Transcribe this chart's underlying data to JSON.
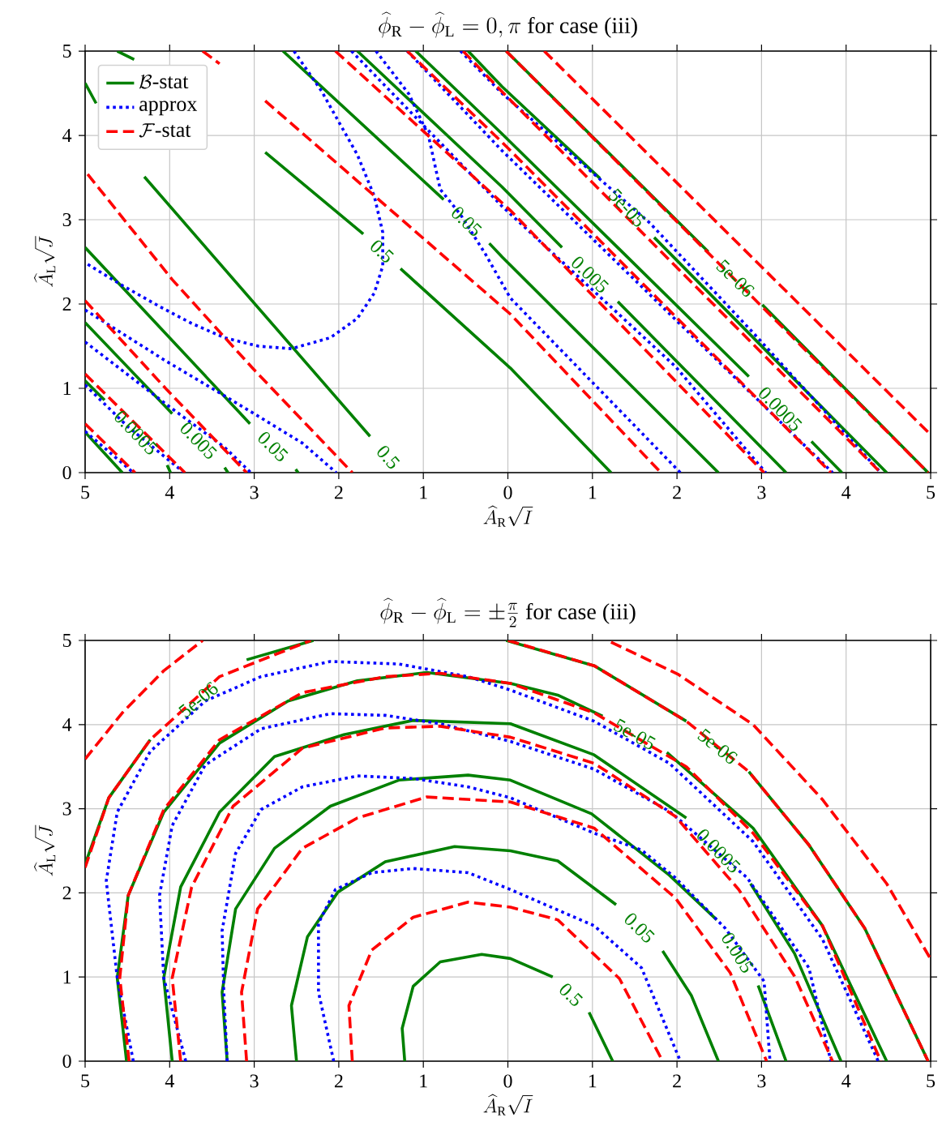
{
  "chart_data": [
    {
      "type": "line",
      "title": "\\widehat{\\phi}_{\\mathrm{R}} - \\widehat{\\phi}_{\\mathrm{L}} = 0, \\pi\\mbox{ for case (iii)}",
      "xlabel": "\\widehat{A}_{\\mathrm{R}}\\sqrt{I}",
      "ylabel": "\\widehat{A}_{\\mathrm{L}}\\sqrt{J}",
      "xlim": [
        -5,
        5
      ],
      "ylim": [
        0,
        5
      ],
      "xticks": [
        {
          "value": -5,
          "label": "5"
        },
        {
          "value": -4,
          "label": "4"
        },
        {
          "value": -3,
          "label": "3"
        },
        {
          "value": -2,
          "label": "2"
        },
        {
          "value": -1,
          "label": "1"
        },
        {
          "value": 0,
          "label": "0"
        },
        {
          "value": 1,
          "label": "1"
        },
        {
          "value": 2,
          "label": "2"
        },
        {
          "value": 3,
          "label": "3"
        },
        {
          "value": 4,
          "label": "4"
        },
        {
          "value": 5,
          "label": "5"
        }
      ],
      "yticks": [
        0,
        1,
        2,
        3,
        4,
        5
      ],
      "grid": true,
      "legend": "top left",
      "series": [
        {
          "name": "\\mathcal{B}\\mbox{-stat}",
          "color": "#008000",
          "line_style": "solid",
          "x": [
            -4.62,
            -4.42,
            null,
            -2.87,
            -1.71,
            null,
            -1.27,
            0.03,
            1.22
          ],
          "values": [
            5.0,
            4.9,
            null,
            3.8,
            2.83,
            null,
            2.42,
            1.24,
            0
          ]
        },
        {
          "color": "#008000",
          "line_style": "solid",
          "x": [
            -2.66,
            -0.76,
            null,
            -0.22,
            -0.07,
            2.49
          ],
          "values": [
            5.0,
            3.24,
            null,
            2.72,
            2.56,
            0
          ]
        },
        {
          "color": "#008000",
          "line_style": "solid",
          "x": [
            -1.78,
            -0.07,
            0.64,
            null,
            1.3,
            3.29
          ],
          "values": [
            5.0,
            3.39,
            2.67,
            null,
            2.03,
            0
          ]
        },
        {
          "color": "#008000",
          "line_style": "solid",
          "x": [
            -1.09,
            -0.07,
            2.85,
            null,
            3.59,
            3.95
          ],
          "values": [
            5.0,
            4.02,
            1.14,
            null,
            0.37,
            0
          ]
        },
        {
          "color": "#008000",
          "line_style": "solid",
          "x": [
            -0.47,
            -0.07,
            1.09,
            null,
            1.73,
            4.48
          ],
          "values": [
            5.0,
            4.58,
            3.49,
            null,
            2.79,
            0
          ]
        },
        {
          "color": "#008000",
          "line_style": "solid",
          "x": [
            -0.02,
            2.37,
            null,
            3.01,
            4.97
          ],
          "values": [
            5.0,
            2.62,
            null,
            1.99,
            0
          ]
        },
        {
          "color": "#008000",
          "line_style": "solid",
          "x": [
            -5,
            -4.87,
            null,
            -4.3,
            -1.63
          ],
          "values": [
            4.62,
            4.38,
            null,
            3.51,
            0.43
          ]
        },
        {
          "color": "#008000",
          "line_style": "solid",
          "x": [
            -5,
            -3.05,
            null,
            -2.51,
            -2.48
          ],
          "values": [
            2.67,
            0.58,
            null,
            0.04,
            0
          ]
        },
        {
          "color": "#008000",
          "line_style": "solid",
          "x": [
            -5,
            -3.97,
            null,
            -3.35,
            -3.31
          ],
          "values": [
            1.78,
            0.7,
            null,
            0.06,
            0
          ]
        },
        {
          "color": "#008000",
          "line_style": "solid",
          "x": [
            -5,
            -4.77,
            null,
            -4.03,
            -3.99
          ],
          "values": [
            1.09,
            0.86,
            null,
            0.09,
            0
          ]
        },
        {
          "color": "#008000",
          "line_style": "solid",
          "x": [
            -5,
            -4.56
          ],
          "values": [
            0.48,
            0
          ]
        },
        {
          "name": "\\mbox{approx}",
          "color": "#0000ff",
          "line_style": "dotted",
          "x": [
            -2.53,
            -2.2,
            -2.0,
            -1.78,
            -1.58,
            -1.48,
            -1.48,
            -1.58,
            -1.78,
            -2.1,
            -2.56,
            -2.95,
            -3.35,
            -3.74,
            -4.1,
            -4.56,
            -5
          ],
          "values": [
            5.0,
            4.52,
            4.16,
            3.77,
            3.28,
            2.85,
            2.45,
            2.13,
            1.83,
            1.6,
            1.47,
            1.5,
            1.6,
            1.77,
            1.96,
            2.22,
            2.49
          ]
        },
        {
          "color": "#0000ff",
          "line_style": "dotted",
          "x": [
            -1.56,
            -1.17,
            -0.94,
            -0.8,
            -0.56,
            -0.27,
            0.03,
            2.04
          ],
          "values": [
            5.0,
            4.49,
            4.0,
            3.36,
            3.06,
            2.6,
            2.07,
            0
          ]
        },
        {
          "color": "#0000ff",
          "line_style": "dotted",
          "x": [
            -0.56,
            -0.07,
            1.68,
            2.9,
            4.41
          ],
          "values": [
            5.0,
            4.5,
            2.96,
            1.66,
            0
          ]
        },
        {
          "color": "#0000ff",
          "line_style": "dotted",
          "x": [
            -1.19,
            -0.07,
            3.84
          ],
          "values": [
            5.0,
            3.82,
            0
          ]
        },
        {
          "color": "#0000ff",
          "line_style": "dotted",
          "x": [
            -1.85,
            -0.07,
            1.98,
            3.05
          ],
          "values": [
            5.0,
            3.16,
            1.26,
            0
          ]
        },
        {
          "color": "#0000ff",
          "line_style": "dotted",
          "x": [
            -5,
            -4.07,
            -3.35,
            -2.92,
            -2.43,
            -2.03
          ],
          "values": [
            1.93,
            1.34,
            0.91,
            0.65,
            0.35,
            0
          ]
        },
        {
          "color": "#0000ff",
          "line_style": "dotted",
          "x": [
            -5,
            -4.0,
            -3.35,
            -3.04
          ],
          "values": [
            1.55,
            0.78,
            0.3,
            0
          ]
        },
        {
          "color": "#0000ff",
          "line_style": "dotted",
          "x": [
            -5,
            -4.5,
            -3.83
          ],
          "values": [
            1.04,
            0.55,
            0
          ]
        },
        {
          "color": "#0000ff",
          "line_style": "dotted",
          "x": [
            -5,
            -4.43
          ],
          "values": [
            0.49,
            0
          ]
        },
        {
          "name": "\\mathcal{F}\\mbox{-stat}",
          "color": "#ff0000",
          "line_style": "dashed",
          "x": [
            -3.61,
            -3.41,
            null,
            -2.87,
            0.03,
            1.81
          ],
          "values": [
            5.0,
            4.85,
            null,
            4.41,
            1.88,
            0
          ]
        },
        {
          "color": "#ff0000",
          "line_style": "dashed",
          "x": [
            -4.97,
            -3.97,
            -3.02,
            -1.84
          ],
          "values": [
            3.54,
            2.29,
            1.24,
            0
          ]
        },
        {
          "color": "#ff0000",
          "line_style": "dashed",
          "x": [
            -5,
            -4.03,
            -3.09
          ],
          "values": [
            2.04,
            0.98,
            0
          ]
        },
        {
          "color": "#ff0000",
          "line_style": "dashed",
          "x": [
            -5,
            -3.82
          ],
          "values": [
            1.17,
            0
          ]
        },
        {
          "color": "#ff0000",
          "line_style": "dashed",
          "x": [
            -5,
            -4.41
          ],
          "values": [
            0.58,
            0
          ]
        },
        {
          "color": "#ff0000",
          "line_style": "dashed",
          "x": [
            -2.04,
            0.03,
            3.03
          ],
          "values": [
            5.0,
            3.11,
            0
          ]
        },
        {
          "color": "#ff0000",
          "line_style": "dashed",
          "x": [
            -1.19,
            -0.07,
            3.82
          ],
          "values": [
            5.0,
            3.92,
            0
          ]
        },
        {
          "color": "#ff0000",
          "line_style": "dashed",
          "x": [
            -0.53,
            -0.07,
            4.41
          ],
          "values": [
            5.0,
            4.52,
            0
          ]
        },
        {
          "color": "#ff0000",
          "line_style": "dashed",
          "x": [
            -0.02,
            4.97
          ],
          "values": [
            5.0,
            0
          ]
        },
        {
          "color": "#ff0000",
          "line_style": "dashed",
          "x": [
            0.43,
            4.97
          ],
          "values": [
            5.0,
            0.48
          ]
        }
      ],
      "annotations": [
        {
          "text": "0.5",
          "x": -1.71,
          "y": 2.83
        },
        {
          "text": "0.05",
          "x": -0.76,
          "y": 3.24
        },
        {
          "text": "5e-05",
          "x": 1.09,
          "y": 3.49
        },
        {
          "text": "0.005",
          "x": 0.64,
          "y": 2.67
        },
        {
          "text": "5e-06",
          "x": 2.37,
          "y": 2.62
        },
        {
          "text": "0.0005",
          "x": 2.85,
          "y": 1.14
        },
        {
          "text": "0.0005",
          "x": -4.77,
          "y": 0.86
        },
        {
          "text": "0.005",
          "x": -3.97,
          "y": 0.7
        },
        {
          "text": "0.05",
          "x": -3.05,
          "y": 0.58
        },
        {
          "text": "0.5",
          "x": -1.63,
          "y": 0.43
        }
      ]
    },
    {
      "type": "line",
      "title": "\\widehat{\\phi}_{\\mathrm{R}} - \\widehat{\\phi}_{\\mathrm{L}} = \\pm\\frac{\\pi}{2}\\mbox{ for case (iii)}",
      "xlabel": "\\widehat{A}_{\\mathrm{R}}\\sqrt{I}",
      "ylabel": "\\widehat{A}_{\\mathrm{L}}\\sqrt{J}",
      "xlim": [
        -5,
        5
      ],
      "ylim": [
        0,
        5
      ],
      "xticks": [
        {
          "value": -5,
          "label": "5"
        },
        {
          "value": -4,
          "label": "4"
        },
        {
          "value": -3,
          "label": "3"
        },
        {
          "value": -2,
          "label": "2"
        },
        {
          "value": -1,
          "label": "1"
        },
        {
          "value": 0,
          "label": "0"
        },
        {
          "value": 1,
          "label": "1"
        },
        {
          "value": 2,
          "label": "2"
        },
        {
          "value": 3,
          "label": "3"
        },
        {
          "value": 4,
          "label": "4"
        },
        {
          "value": 5,
          "label": "5"
        }
      ],
      "yticks": [
        0,
        1,
        2,
        3,
        4,
        5
      ],
      "grid": true,
      "series": [
        {
          "color": "#008000",
          "line_style": "solid",
          "x": [
            -1.22,
            -1.25,
            -1.12,
            -0.8,
            -0.31,
            0.03,
            0.53,
            null,
            0.96,
            1.24
          ],
          "values": [
            0,
            0.39,
            0.89,
            1.18,
            1.27,
            1.22,
            1.0,
            null,
            0.58,
            0
          ]
        },
        {
          "color": "#008000",
          "line_style": "solid",
          "x": [
            -2.5,
            -2.56,
            -2.37,
            -2.01,
            -1.45,
            -0.63,
            0.03,
            0.59,
            1.28,
            null,
            1.83,
            2.17,
            2.49
          ],
          "values": [
            0,
            0.66,
            1.48,
            2.01,
            2.37,
            2.55,
            2.5,
            2.38,
            1.86,
            null,
            1.31,
            0.78,
            0
          ]
        },
        {
          "color": "#008000",
          "line_style": "solid",
          "x": [
            -3.32,
            -3.38,
            -3.22,
            -2.76,
            -2.1,
            -1.29,
            -0.47,
            0.03,
            0.99,
            1.91,
            2.47,
            null,
            2.96,
            3.29
          ],
          "values": [
            0,
            0.82,
            1.81,
            2.53,
            3.03,
            3.34,
            3.4,
            3.34,
            2.94,
            2.21,
            1.68,
            null,
            0.9,
            0
          ]
        },
        {
          "color": "#008000",
          "line_style": "solid",
          "x": [
            -3.97,
            -4.07,
            -3.87,
            -3.41,
            -2.76,
            -1.94,
            -1.12,
            0.03,
            1.02,
            2.11,
            null,
            2.87,
            3.39,
            3.94
          ],
          "values": [
            0,
            0.99,
            2.07,
            2.96,
            3.62,
            3.88,
            4.05,
            4.01,
            3.64,
            2.89,
            null,
            2.11,
            1.28,
            0
          ]
        },
        {
          "color": "#008000",
          "line_style": "solid",
          "x": [
            -4.51,
            -4.62,
            -4.49,
            -4.07,
            -3.41,
            -2.6,
            -1.78,
            -0.96,
            0.03,
            0.59,
            1.12,
            null,
            1.88,
            2.9,
            3.72,
            4.48
          ],
          "values": [
            0,
            0.99,
            1.97,
            2.96,
            3.78,
            4.28,
            4.52,
            4.62,
            4.49,
            4.35,
            4.1,
            null,
            3.67,
            2.77,
            1.61,
            0
          ]
        },
        {
          "color": "#008000",
          "line_style": "solid",
          "x": [
            -5,
            -4.72,
            -4.23,
            null,
            -3.09,
            -2.3,
            null,
            -0.02,
            1.02,
            2.11,
            null,
            2.85,
            3.56,
            4.22,
            4.97
          ],
          "values": [
            2.34,
            3.13,
            3.82,
            null,
            4.77,
            5.0,
            null,
            5.0,
            4.7,
            4.04,
            null,
            3.44,
            2.57,
            1.58,
            0
          ]
        },
        {
          "color": "#0000ff",
          "line_style": "dotted",
          "x": [
            -2.06,
            -2.24,
            -2.24,
            -2.04,
            -1.61,
            -1.12,
            -0.47,
            0.03,
            1.02,
            1.58,
            2.04
          ],
          "values": [
            0,
            0.82,
            1.64,
            2.04,
            2.24,
            2.29,
            2.24,
            2.04,
            1.61,
            1.11,
            0
          ]
        },
        {
          "color": "#0000ff",
          "line_style": "dotted",
          "x": [
            -3.32,
            -3.36,
            -3.38,
            -3.22,
            -2.92,
            -2.43,
            -1.78,
            -1.12,
            -0.47,
            0.03,
            1.02,
            1.58,
            1.98,
            2.57,
            3.03,
            3.1
          ],
          "values": [
            0,
            0.82,
            1.55,
            2.47,
            2.99,
            3.26,
            3.39,
            3.36,
            3.26,
            3.13,
            2.71,
            2.51,
            2.18,
            1.58,
            0.95,
            0
          ]
        },
        {
          "color": "#0000ff",
          "line_style": "dotted",
          "x": [
            -3.81,
            -4.07,
            -4.12,
            -3.97,
            -3.58,
            -2.92,
            -2.1,
            -1.45,
            -0.8,
            0.03,
            1.02,
            1.91,
            2.83,
            3.56,
            3.82
          ],
          "values": [
            0,
            0.99,
            1.97,
            2.8,
            3.52,
            3.95,
            4.13,
            4.11,
            4.01,
            3.8,
            3.47,
            2.97,
            2.18,
            1.11,
            0
          ]
        },
        {
          "color": "#0000ff",
          "line_style": "dotted",
          "x": [
            -4.43,
            -4.62,
            -4.75,
            -4.62,
            -4.23,
            -3.58,
            -2.92,
            -2.1,
            -1.29,
            -0.47,
            0.03,
            1.02,
            1.91,
            2.9,
            3.72,
            4.38
          ],
          "values": [
            0,
            0.99,
            2.14,
            2.96,
            3.68,
            4.28,
            4.57,
            4.75,
            4.72,
            4.57,
            4.41,
            4.04,
            3.54,
            2.61,
            1.45,
            0
          ]
        },
        {
          "color": "#ff0000",
          "line_style": "dashed",
          "x": [
            -1.84,
            -1.88,
            -1.61,
            -1.12,
            -0.47,
            0.03,
            0.59,
            1.32,
            1.83
          ],
          "values": [
            0,
            0.66,
            1.32,
            1.71,
            1.89,
            1.83,
            1.68,
            0.98,
            0
          ]
        },
        {
          "color": "#ff0000",
          "line_style": "dashed",
          "x": [
            -3.09,
            -3.15,
            -2.96,
            -2.43,
            -1.78,
            -0.96,
            0.03,
            1.02,
            1.98,
            2.63,
            3.06
          ],
          "values": [
            0,
            0.82,
            1.81,
            2.53,
            2.89,
            3.14,
            3.08,
            2.77,
            1.94,
            1.05,
            0
          ]
        },
        {
          "color": "#ff0000",
          "line_style": "dashed",
          "x": [
            -3.87,
            -3.97,
            -3.74,
            -3.25,
            -2.43,
            -1.45,
            -0.8,
            0.03,
            1.02,
            1.98,
            2.73,
            3.39,
            3.84
          ],
          "values": [
            0,
            0.99,
            2.07,
            3.03,
            3.72,
            3.96,
            3.98,
            3.85,
            3.54,
            2.91,
            2.04,
            1.01,
            0
          ]
        },
        {
          "color": "#ff0000",
          "line_style": "dashed",
          "x": [
            -4.48,
            -4.59,
            -4.49,
            -4.07,
            -3.41,
            -2.43,
            -1.45,
            -0.8,
            0.03,
            1.02,
            2.11,
            2.9,
            3.72,
            4.41
          ],
          "values": [
            0,
            0.99,
            1.97,
            2.99,
            3.82,
            4.38,
            4.57,
            4.61,
            4.49,
            4.14,
            3.5,
            2.71,
            1.61,
            0
          ]
        },
        {
          "color": "#ff0000",
          "line_style": "dashed",
          "x": [
            -5,
            -4.72,
            -4.23,
            -3.41,
            -2.33,
            null,
            0.0,
            1.02,
            2.11,
            2.85,
            3.56,
            4.22,
            4.97
          ],
          "values": [
            2.3,
            3.13,
            3.82,
            4.57,
            5.0,
            null,
            5.0,
            4.7,
            4.04,
            3.44,
            2.57,
            1.58,
            0
          ]
        },
        {
          "color": "#ff0000",
          "line_style": "dashed",
          "x": [
            -5,
            -4.56,
            -4.07,
            -3.61,
            null,
            1.22,
            2.01,
            2.9,
            3.72,
            4.48,
            4.99
          ],
          "values": [
            3.59,
            4.14,
            4.64,
            5.0,
            null,
            4.98,
            4.6,
            4.0,
            3.11,
            2.11,
            1.23
          ]
        }
      ],
      "annotations": [
        {
          "text": "5e-06",
          "x": -4.23,
          "y": 3.82
        },
        {
          "text": "5e-05",
          "x": 1.12,
          "y": 4.1
        },
        {
          "text": "5e-06",
          "x": 2.11,
          "y": 4.04
        },
        {
          "text": "0.0005",
          "x": 2.11,
          "y": 2.89
        },
        {
          "text": "0.005",
          "x": 2.47,
          "y": 1.68
        },
        {
          "text": "0.05",
          "x": 1.28,
          "y": 1.86
        },
        {
          "text": "0.5",
          "x": 0.53,
          "y": 1.0
        }
      ]
    }
  ]
}
